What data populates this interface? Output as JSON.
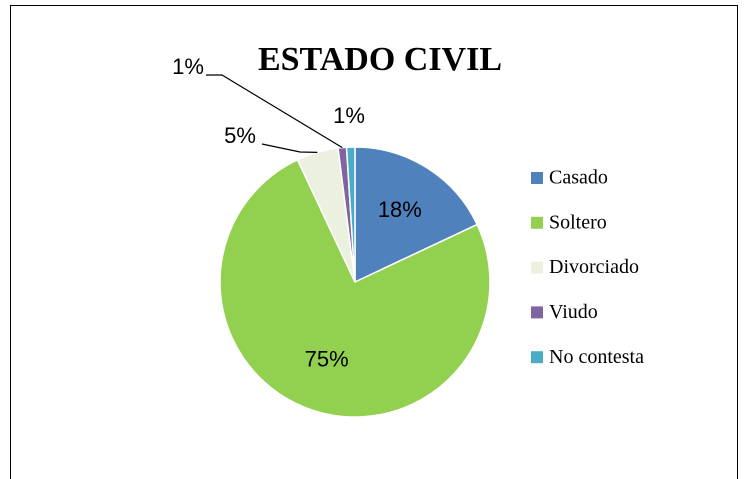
{
  "chart_data": {
    "type": "pie",
    "title": "ESTADO CIVIL",
    "categories": [
      "Casado",
      "Soltero",
      "Divorciado",
      "Viudo",
      "No contesta"
    ],
    "values": [
      18,
      75,
      5,
      1,
      1
    ],
    "value_labels": [
      "18%",
      "75%",
      "5%",
      "1%",
      "1%"
    ],
    "colors": [
      "#4f81bd",
      "#92d050",
      "#ebf1de",
      "#8064a2",
      "#4bacc6"
    ],
    "legend": "right"
  }
}
